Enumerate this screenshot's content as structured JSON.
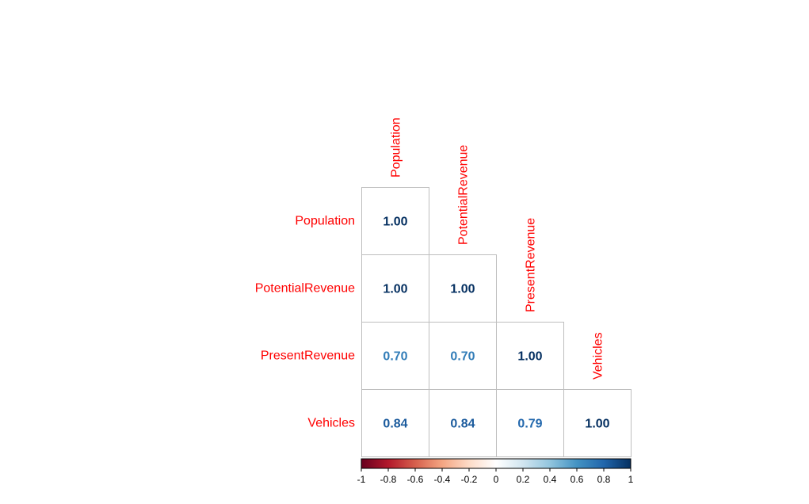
{
  "chart_data": {
    "type": "heatmap",
    "subtype": "correlation-matrix-lower-triangle",
    "title": "",
    "variables": [
      "Population",
      "PotentialRevenue",
      "PresentRevenue",
      "Vehicles"
    ],
    "matrix": [
      [
        1.0,
        null,
        null,
        null
      ],
      [
        1.0,
        1.0,
        null,
        null
      ],
      [
        0.7,
        0.7,
        1.0,
        null
      ],
      [
        0.84,
        0.84,
        0.79,
        1.0
      ]
    ],
    "value_labels": [
      [
        "1.00",
        "",
        "",
        ""
      ],
      [
        "1.00",
        "1.00",
        "",
        ""
      ],
      [
        "0.70",
        "0.70",
        "1.00",
        ""
      ],
      [
        "0.84",
        "0.84",
        "0.79",
        "1.00"
      ]
    ],
    "color_scale": {
      "range": [
        -1,
        1
      ],
      "ticks": [
        "-1",
        "-0.8",
        "-0.6",
        "-0.4",
        "-0.2",
        "0",
        "0.2",
        "0.4",
        "0.6",
        "0.8",
        "1"
      ],
      "stops": [
        "#67001F",
        "#B2182B",
        "#D6604D",
        "#F4A582",
        "#FDDBC7",
        "#FFFFFF",
        "#D1E5F0",
        "#92C5DE",
        "#4393C3",
        "#2166AC",
        "#053061"
      ]
    },
    "label_color": "#FF0000",
    "grid": true,
    "legend_position": "bottom"
  }
}
